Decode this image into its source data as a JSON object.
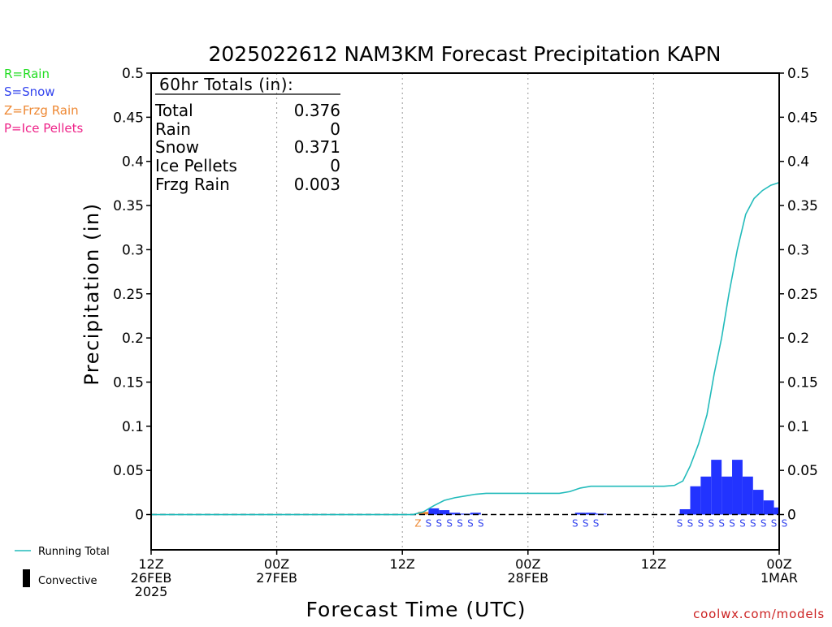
{
  "title": "2025022612 NAM3KM Forecast Precipitation KAPN",
  "credit": "coolwx.com/models",
  "type_legend": [
    {
      "label": "R=Rain",
      "color": "#22dd22"
    },
    {
      "label": "S=Snow",
      "color": "#3344ee"
    },
    {
      "label": "Z=Frzg Rain",
      "color": "#ee8833"
    },
    {
      "label": "P=Ice Pellets",
      "color": "#ee2288"
    }
  ],
  "line_legend": {
    "running_total": {
      "label": "Running Total",
      "color": "#22bbbb"
    },
    "convective": {
      "label": "Convective",
      "color": "#000000"
    }
  },
  "totals_box": {
    "header": "60hr Totals (in):",
    "rows": [
      {
        "label": "Total",
        "value": "0.376"
      },
      {
        "label": "Rain",
        "value": "0"
      },
      {
        "label": "Snow",
        "value": "0.371"
      },
      {
        "label": "Ice Pellets",
        "value": "0"
      },
      {
        "label": "Frzg Rain",
        "value": "0.003"
      }
    ]
  },
  "chart_data": {
    "type": "bar",
    "title": "2025022612 NAM3KM Forecast Precipitation KAPN",
    "xlabel": "Forecast Time (UTC)",
    "ylabel": "Precipitation (in)",
    "x_unit": "forecast hour",
    "xlim": [
      0,
      60
    ],
    "ylim": [
      -0.04,
      0.5
    ],
    "y_ticks": [
      0,
      0.05,
      0.1,
      0.15,
      0.2,
      0.25,
      0.3,
      0.35,
      0.4,
      0.45,
      0.5
    ],
    "y_tick_labels": [
      "0",
      "0.05",
      "0.1",
      "0.15",
      "0.2",
      "0.25",
      "0.3",
      "0.35",
      "0.4",
      "0.45",
      "0.5"
    ],
    "x_ticks": [
      {
        "hour": 0,
        "lines": [
          "12Z",
          "26FEB",
          "2025"
        ]
      },
      {
        "hour": 12,
        "lines": [
          "00Z",
          "27FEB"
        ]
      },
      {
        "hour": 24,
        "lines": [
          "12Z"
        ]
      },
      {
        "hour": 36,
        "lines": [
          "00Z",
          "28FEB"
        ]
      },
      {
        "hour": 48,
        "lines": [
          "12Z"
        ]
      },
      {
        "hour": 60,
        "lines": [
          "00Z",
          "1MAR"
        ]
      }
    ],
    "grid": "vertical dotted at 12-hour ticks",
    "bar_color": "#2233ff",
    "hourly_precip": [
      {
        "hour": 26,
        "value": 0.003,
        "ptype": "Z"
      },
      {
        "hour": 27,
        "value": 0.007,
        "ptype": "S"
      },
      {
        "hour": 28,
        "value": 0.005,
        "ptype": "S"
      },
      {
        "hour": 29,
        "value": 0.002,
        "ptype": "S"
      },
      {
        "hour": 30,
        "value": 0.001,
        "ptype": "S"
      },
      {
        "hour": 31,
        "value": 0.002,
        "ptype": "S"
      },
      {
        "hour": 32,
        "value": 0.0,
        "ptype": "S"
      },
      {
        "hour": 41,
        "value": 0.002,
        "ptype": "S"
      },
      {
        "hour": 42,
        "value": 0.002,
        "ptype": "S"
      },
      {
        "hour": 43,
        "value": 0.001,
        "ptype": "S"
      },
      {
        "hour": 51,
        "value": 0.006,
        "ptype": "S"
      },
      {
        "hour": 52,
        "value": 0.032,
        "ptype": "S"
      },
      {
        "hour": 53,
        "value": 0.043,
        "ptype": "S"
      },
      {
        "hour": 54,
        "value": 0.062,
        "ptype": "S"
      },
      {
        "hour": 55,
        "value": 0.043,
        "ptype": "S"
      },
      {
        "hour": 56,
        "value": 0.062,
        "ptype": "S"
      },
      {
        "hour": 57,
        "value": 0.043,
        "ptype": "S"
      },
      {
        "hour": 58,
        "value": 0.028,
        "ptype": "S"
      },
      {
        "hour": 59,
        "value": 0.016,
        "ptype": "S"
      },
      {
        "hour": 60,
        "value": 0.008,
        "ptype": "S"
      },
      {
        "hour": 61,
        "value": 0.003,
        "ptype": "S"
      }
    ],
    "running_total": [
      [
        0,
        0
      ],
      [
        25,
        0
      ],
      [
        26,
        0.003
      ],
      [
        27,
        0.01
      ],
      [
        28,
        0.016
      ],
      [
        29,
        0.019
      ],
      [
        30,
        0.021
      ],
      [
        31,
        0.023
      ],
      [
        32,
        0.024
      ],
      [
        38,
        0.024
      ],
      [
        39,
        0.024
      ],
      [
        40,
        0.026
      ],
      [
        41,
        0.03
      ],
      [
        42,
        0.032
      ],
      [
        49,
        0.032
      ],
      [
        50,
        0.033
      ],
      [
        50.8,
        0.038
      ],
      [
        51.5,
        0.055
      ],
      [
        52.3,
        0.08
      ],
      [
        53.1,
        0.113
      ],
      [
        53.8,
        0.16
      ],
      [
        54.5,
        0.2
      ],
      [
        55.2,
        0.25
      ],
      [
        56,
        0.3
      ],
      [
        56.8,
        0.34
      ],
      [
        57.6,
        0.358
      ],
      [
        58.4,
        0.367
      ],
      [
        59.2,
        0.373
      ],
      [
        60,
        0.376
      ]
    ]
  }
}
